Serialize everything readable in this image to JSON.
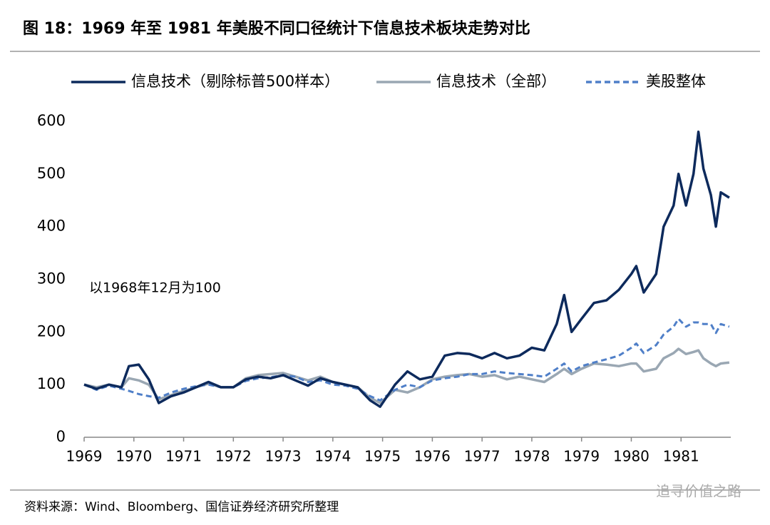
{
  "chart_data": {
    "type": "line",
    "title": "图 18：1969 年至 1981 年美股不同口径统计下信息技术板块走势对比",
    "annotation": "以1968年12月为100",
    "source": "资料来源：Wind、Bloomberg、国信证券经济研究所整理",
    "watermark": "追寻价值之路",
    "x": [
      1969,
      1969.25,
      1969.5,
      1969.75,
      1969.9,
      1970.1,
      1970.3,
      1970.5,
      1970.75,
      1971,
      1971.25,
      1971.5,
      1971.75,
      1972,
      1972.25,
      1972.5,
      1972.75,
      1973,
      1973.25,
      1973.5,
      1973.75,
      1974,
      1974.25,
      1974.5,
      1974.75,
      1974.95,
      1975.25,
      1975.5,
      1975.75,
      1976,
      1976.25,
      1976.5,
      1976.75,
      1977,
      1977.25,
      1977.5,
      1977.75,
      1978,
      1978.25,
      1978.5,
      1978.65,
      1978.8,
      1979,
      1979.25,
      1979.5,
      1979.75,
      1980,
      1980.1,
      1980.25,
      1980.5,
      1980.65,
      1980.85,
      1980.95,
      1981.1,
      1981.25,
      1981.35,
      1981.45,
      1981.6,
      1981.7,
      1981.8,
      1981.97
    ],
    "series": [
      {
        "name": "信息技术（剔除标普500样本）",
        "color": "#0d2a5c",
        "style": "solid",
        "values": [
          100,
          92,
          100,
          95,
          135,
          138,
          110,
          65,
          78,
          85,
          95,
          105,
          95,
          95,
          110,
          115,
          112,
          118,
          108,
          98,
          112,
          105,
          100,
          95,
          70,
          58,
          100,
          125,
          110,
          115,
          155,
          160,
          158,
          150,
          160,
          150,
          155,
          170,
          165,
          215,
          270,
          200,
          225,
          255,
          260,
          280,
          310,
          325,
          275,
          310,
          400,
          440,
          500,
          440,
          500,
          580,
          510,
          460,
          400,
          465,
          455
        ]
      },
      {
        "name": "信息技术（全部）",
        "color": "#9aa7b3",
        "style": "solid",
        "values": [
          100,
          95,
          100,
          95,
          112,
          108,
          100,
          72,
          80,
          88,
          95,
          102,
          95,
          95,
          112,
          118,
          120,
          122,
          115,
          108,
          115,
          105,
          100,
          95,
          75,
          65,
          90,
          85,
          95,
          110,
          115,
          118,
          120,
          115,
          118,
          110,
          115,
          110,
          105,
          120,
          130,
          120,
          130,
          140,
          138,
          135,
          140,
          140,
          125,
          130,
          150,
          160,
          168,
          158,
          162,
          165,
          150,
          140,
          135,
          140,
          142
        ]
      },
      {
        "name": "美股整体",
        "color": "#4f7fc8",
        "style": "dashed",
        "values": [
          100,
          90,
          98,
          92,
          88,
          82,
          78,
          75,
          85,
          92,
          97,
          100,
          95,
          95,
          107,
          112,
          114,
          118,
          115,
          105,
          108,
          100,
          98,
          92,
          78,
          70,
          90,
          100,
          95,
          108,
          112,
          115,
          120,
          120,
          125,
          122,
          120,
          118,
          115,
          130,
          140,
          125,
          135,
          142,
          148,
          155,
          170,
          178,
          160,
          175,
          195,
          210,
          225,
          210,
          218,
          218,
          215,
          215,
          198,
          215,
          210
        ]
      }
    ],
    "xlim": [
      1969,
      1982
    ],
    "xticks": [
      1969,
      1970,
      1971,
      1972,
      1973,
      1974,
      1975,
      1976,
      1977,
      1978,
      1979,
      1980,
      1981
    ],
    "ylim": [
      0,
      600
    ],
    "yticks": [
      0,
      100,
      200,
      300,
      400,
      500,
      600
    ],
    "grid": false,
    "legend": "top"
  }
}
